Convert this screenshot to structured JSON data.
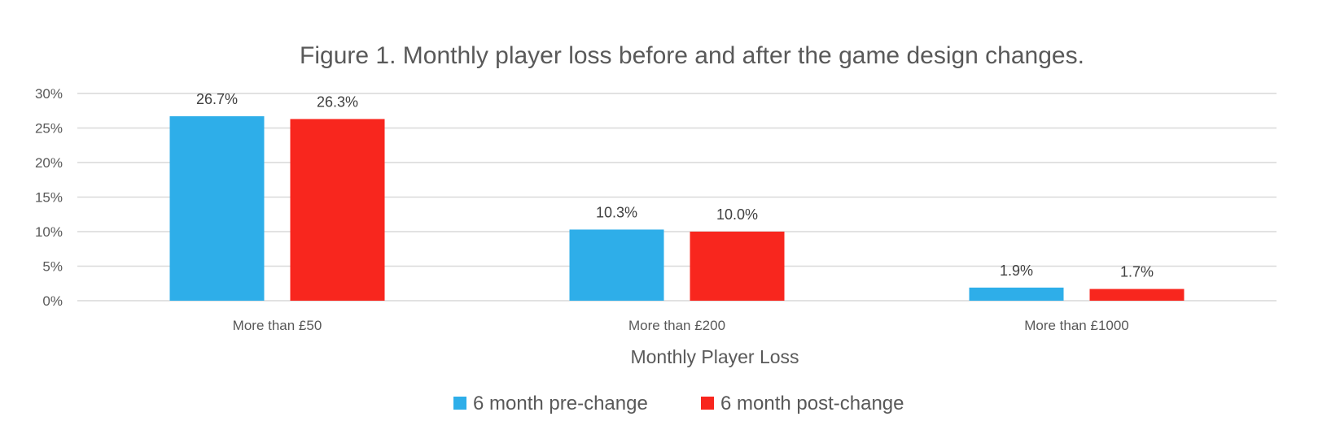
{
  "chart_data": {
    "type": "bar",
    "title": "Figure 1. Monthly player loss before and after the game design changes.",
    "xlabel": "Monthly Player Loss",
    "ylabel": "",
    "categories": [
      "More than £50",
      "More than £200",
      "More than £1000"
    ],
    "series": [
      {
        "name": "6 month pre-change",
        "values": [
          26.7,
          10.3,
          1.9
        ],
        "labels": [
          "26.7%",
          "10.3%",
          "1.9%"
        ],
        "color": "#2EAEE9"
      },
      {
        "name": "6 month post-change",
        "values": [
          26.3,
          10.0,
          1.7
        ],
        "labels": [
          "26.3%",
          "10.0%",
          "1.7%"
        ],
        "color": "#F8261E"
      }
    ],
    "ylim": [
      0,
      30
    ],
    "yticks": [
      0,
      5,
      10,
      15,
      20,
      25,
      30
    ],
    "ytick_labels": [
      "0%",
      "5%",
      "10%",
      "15%",
      "20%",
      "25%",
      "30%"
    ],
    "grid": true,
    "legend": "bottom",
    "colors": {
      "gridline": "#D9D9D9",
      "text": "#595959"
    }
  }
}
